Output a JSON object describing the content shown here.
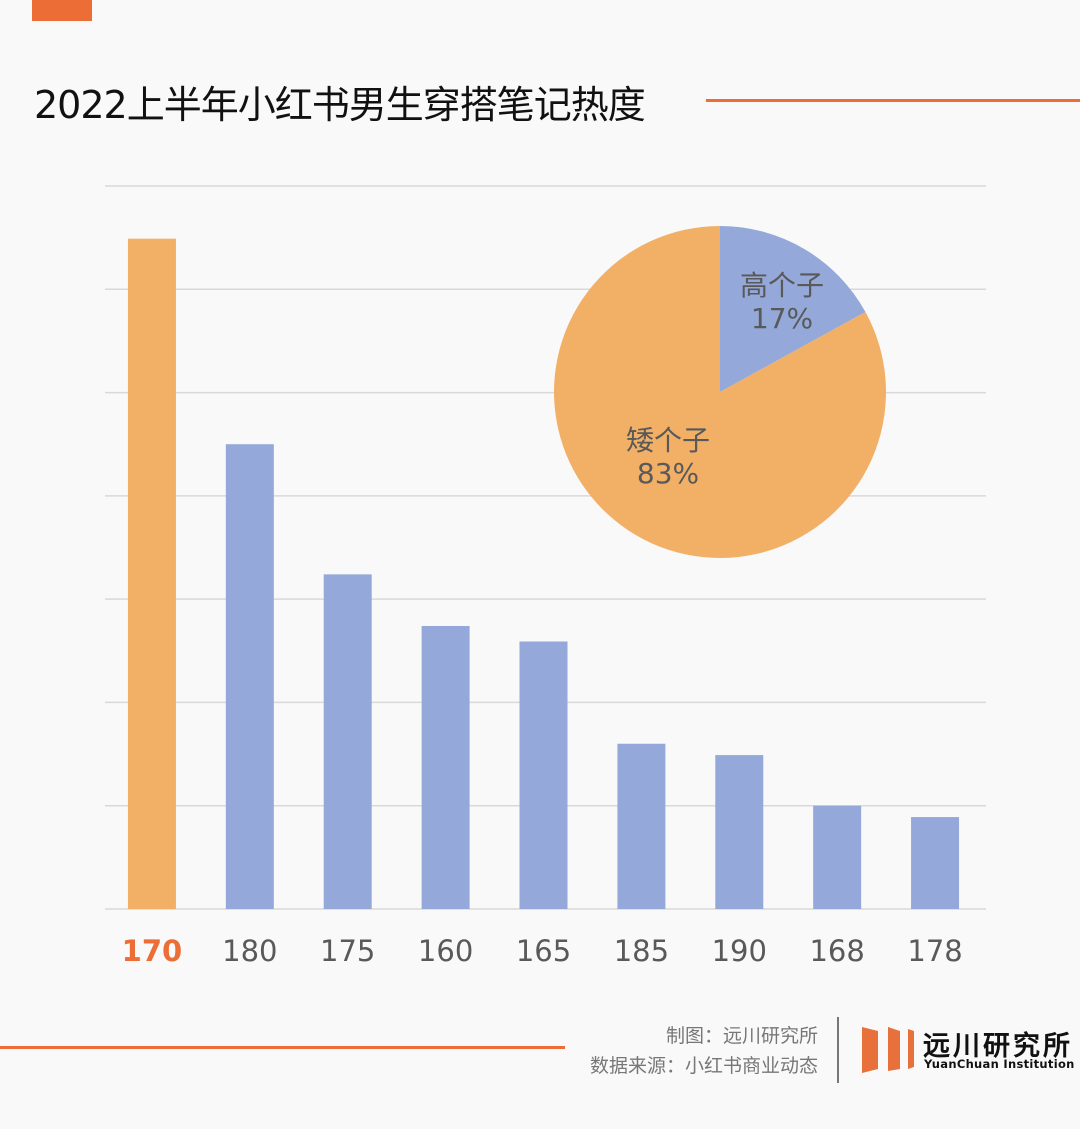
{
  "header": {
    "title": "2022上半年小红书男生穿搭笔记热度"
  },
  "colors": {
    "accent": "#ec6d35",
    "highlight_bar": "#f2b066",
    "bar": "#94a9d9",
    "grid": "#d9d9d9",
    "label": "#595959",
    "pie_short": "#f2b066",
    "pie_tall": "#94a9d9"
  },
  "chart_data": [
    {
      "type": "bar",
      "title": "2022上半年小红书男生穿搭笔记热度",
      "xlabel": "",
      "ylabel": "",
      "y_tick_labels_shown": false,
      "y_units": "gridline intervals (no numeric axis shown)",
      "ylim": [
        0,
        7
      ],
      "grid": true,
      "highlight_category": "170",
      "categories": [
        "170",
        "180",
        "175",
        "160",
        "165",
        "185",
        "190",
        "168",
        "178"
      ],
      "values": [
        6.49,
        4.5,
        3.24,
        2.74,
        2.59,
        1.6,
        1.49,
        1.0,
        0.89
      ]
    },
    {
      "type": "pie",
      "labels": [
        "高个子",
        "矮个子"
      ],
      "values": [
        17,
        83
      ],
      "value_labels": [
        "17%",
        "83%"
      ],
      "start": "top, clockwise"
    }
  ],
  "footer": {
    "credit_chart": "制图：远川研究所",
    "credit_source": "数据来源：小红书商业动态",
    "logo_cn": "远川研究所",
    "logo_en": "YuanChuan  Institution"
  }
}
